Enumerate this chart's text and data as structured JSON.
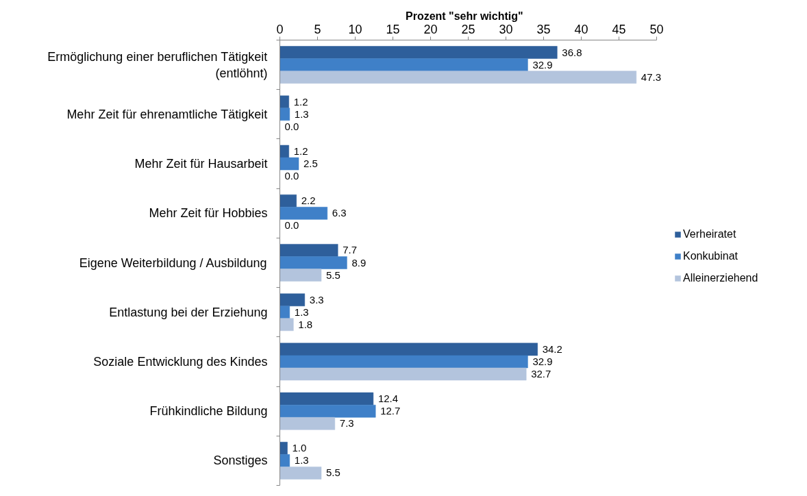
{
  "chart_data": {
    "type": "bar",
    "orientation": "horizontal",
    "xlabel": "Prozent \"sehr wichtig\"",
    "categories": [
      "Ermöglichung einer beruflichen Tätigkeit (entlöhnt)",
      "Mehr Zeit für ehrenamtliche Tätigkeit",
      "Mehr Zeit für Hausarbeit",
      "Mehr Zeit für Hobbies",
      "Eigene Weiterbildung / Ausbildung",
      "Entlastung bei der Erziehung",
      "Soziale Entwicklung des Kindes",
      "Frühkindliche Bildung",
      "Sonstiges"
    ],
    "series": [
      {
        "name": "Verheiratet",
        "color": "#2e5f9b",
        "values": [
          36.8,
          1.2,
          1.2,
          2.2,
          7.7,
          3.3,
          34.2,
          12.4,
          1.0
        ],
        "value_labels": [
          "36.8",
          "1.2",
          "1.2",
          "2.2",
          "7.7",
          "3.3",
          "34.2",
          "12.4",
          "1.0"
        ]
      },
      {
        "name": "Konkubinat",
        "color": "#3f80c8",
        "values": [
          32.9,
          1.3,
          2.5,
          6.3,
          8.9,
          1.3,
          32.9,
          12.7,
          1.3
        ],
        "value_labels": [
          "32.9",
          "1.3",
          "2.5",
          "6.3",
          "8.9",
          "1.3",
          "32.9",
          "12.7",
          "1.3"
        ]
      },
      {
        "name": "Alleinerziehend",
        "color": "#b3c4dd",
        "values": [
          47.3,
          0.0,
          0.0,
          0.0,
          5.5,
          1.8,
          32.7,
          7.3,
          5.5
        ],
        "value_labels": [
          "47.3",
          "0.0",
          "0.0",
          "0.0",
          "5.5",
          "1.8",
          "32.7",
          "7.3",
          "5.5"
        ]
      }
    ],
    "xlim": [
      0,
      50
    ],
    "xticks": [
      0,
      5,
      10,
      15,
      20,
      25,
      30,
      35,
      40,
      45,
      50
    ],
    "legend": "right",
    "grid": false
  }
}
